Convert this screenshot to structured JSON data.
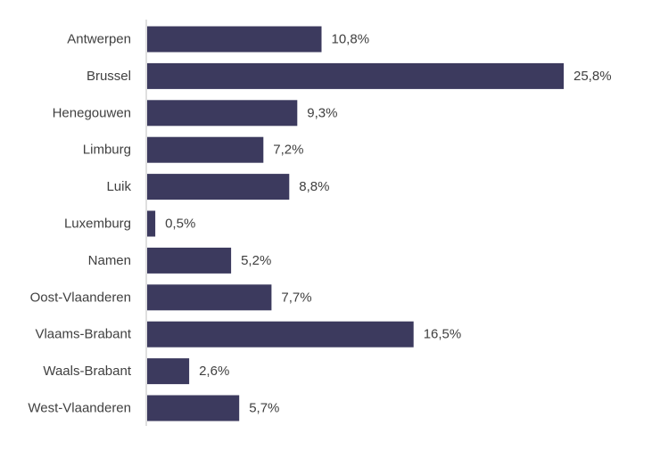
{
  "chart_data": {
    "type": "bar",
    "orientation": "horizontal",
    "categories": [
      "Antwerpen",
      "Brussel",
      "Henegouwen",
      "Limburg",
      "Luik",
      "Luxemburg",
      "Namen",
      "Oost-Vlaanderen",
      "Vlaams-Brabant",
      "Waals-Brabant",
      "West-Vlaanderen"
    ],
    "values": [
      10.8,
      25.8,
      9.3,
      7.2,
      8.8,
      0.5,
      5.2,
      7.7,
      16.5,
      2.6,
      5.7
    ],
    "data_labels": [
      "10,8%",
      "25,8%",
      "9,3%",
      "7,2%",
      "8,8%",
      "0,5%",
      "5,2%",
      "7,7%",
      "16,5%",
      "2,6%",
      "5,7%"
    ],
    "title": "",
    "xlabel": "",
    "ylabel": "",
    "grid": false,
    "legend": "none",
    "bar_color": "#3c3a5e",
    "axis_color": "#bfbfbf",
    "label_color": "#404040"
  }
}
